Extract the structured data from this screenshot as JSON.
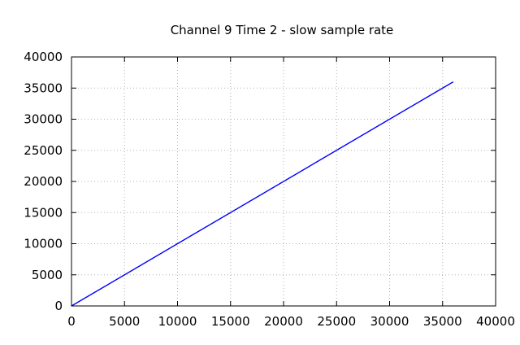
{
  "chart_data": {
    "type": "line",
    "title": "Channel 9 Time  2 - slow sample rate",
    "xlabel": "",
    "ylabel": "",
    "xlim": [
      0,
      40000
    ],
    "ylim": [
      0,
      40000
    ],
    "x_ticks": [
      0,
      5000,
      10000,
      15000,
      20000,
      25000,
      30000,
      35000,
      40000
    ],
    "y_ticks": [
      0,
      5000,
      10000,
      15000,
      20000,
      25000,
      30000,
      35000,
      40000
    ],
    "grid": true,
    "legend": "none",
    "series": [
      {
        "color": "#0000ff",
        "x": [
          0,
          36000
        ],
        "y": [
          0,
          36000
        ]
      }
    ]
  }
}
